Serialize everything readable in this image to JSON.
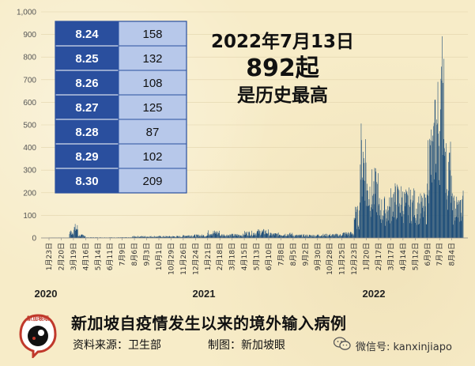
{
  "chart_data": {
    "type": "bar",
    "ylim": [
      0,
      1000
    ],
    "yticks": [
      "0",
      "100",
      "200",
      "300",
      "400",
      "500",
      "600",
      "700",
      "800",
      "900",
      "1,000"
    ],
    "x_tick_labels": [
      "1月23日",
      "2月20日",
      "3月19日",
      "4月16日",
      "5月14日",
      "6月11日",
      "7月9日",
      "8月6日",
      "9月3日",
      "10月1日",
      "10月29日",
      "11月26日",
      "12月24日",
      "1月21日",
      "2月18日",
      "3月18日",
      "4月15日",
      "5月13日",
      "6月10日",
      "7月8日",
      "8月5日",
      "9月2日",
      "9月30日",
      "10月28日",
      "11月25日",
      "12月23日",
      "1月20日",
      "2月17日",
      "3月17日",
      "4月14日",
      "5月12日",
      "6月9日",
      "7月7日",
      "8月4日"
    ],
    "year_labels": [
      "2020",
      "2021",
      "2022"
    ],
    "series_profile": [
      {
        "from": "2020-01-23",
        "level": 1
      },
      {
        "from": "2020-03-10",
        "level": 25
      },
      {
        "from": "2020-03-19",
        "level": 40
      },
      {
        "from": "2020-03-30",
        "level": 10
      },
      {
        "from": "2020-04-16",
        "level": 2
      },
      {
        "from": "2020-08-01",
        "level": 6
      },
      {
        "from": "2020-11-26",
        "level": 10
      },
      {
        "from": "2021-01-21",
        "level": 22
      },
      {
        "from": "2021-02-18",
        "level": 12
      },
      {
        "from": "2021-04-15",
        "level": 20
      },
      {
        "from": "2021-05-13",
        "level": 25
      },
      {
        "from": "2021-06-10",
        "level": 15
      },
      {
        "from": "2021-08-05",
        "level": 10
      },
      {
        "from": "2021-09-30",
        "level": 12
      },
      {
        "from": "2021-11-25",
        "level": 18
      },
      {
        "from": "2021-12-23",
        "level": 90
      },
      {
        "from": "2022-01-05",
        "level": 420
      },
      {
        "from": "2022-01-20",
        "level": 250
      },
      {
        "from": "2022-02-17",
        "level": 150
      },
      {
        "from": "2022-03-17",
        "level": 200
      },
      {
        "from": "2022-04-14",
        "level": 180
      },
      {
        "from": "2022-05-12",
        "level": 160
      },
      {
        "from": "2022-06-09",
        "level": 420
      },
      {
        "from": "2022-06-25",
        "level": 600
      },
      {
        "from": "2022-07-07",
        "level": 650
      },
      {
        "from": "2022-07-13",
        "level": 892
      },
      {
        "from": "2022-07-20",
        "level": 350
      },
      {
        "from": "2022-08-04",
        "level": 160
      },
      {
        "from": "2022-08-30",
        "level": 209
      }
    ],
    "peak": {
      "date": "2022-07-13",
      "value": 892
    },
    "bar_color": "#1f4e79"
  },
  "table": [
    {
      "date": "8.24",
      "value": "158"
    },
    {
      "date": "8.25",
      "value": "132"
    },
    {
      "date": "8.26",
      "value": "108"
    },
    {
      "date": "8.27",
      "value": "125"
    },
    {
      "date": "8.28",
      "value": "87"
    },
    {
      "date": "8.29",
      "value": "102"
    },
    {
      "date": "8.30",
      "value": "209"
    }
  ],
  "table_colors": {
    "date_bg": "#2a4f9e",
    "value_bg": "#b7c8ea"
  },
  "annotation": {
    "line1": "2022年7月13日",
    "line2": "892起",
    "line3": "是历史最高"
  },
  "footer": {
    "title": "新加坡自疫情发生以来的境外输入病例",
    "source": "资料来源：卫生部",
    "maker": "制图：新加坡眼",
    "wechat": "微信号: kanxinjiapo",
    "logo_text": "新加坡眼"
  }
}
